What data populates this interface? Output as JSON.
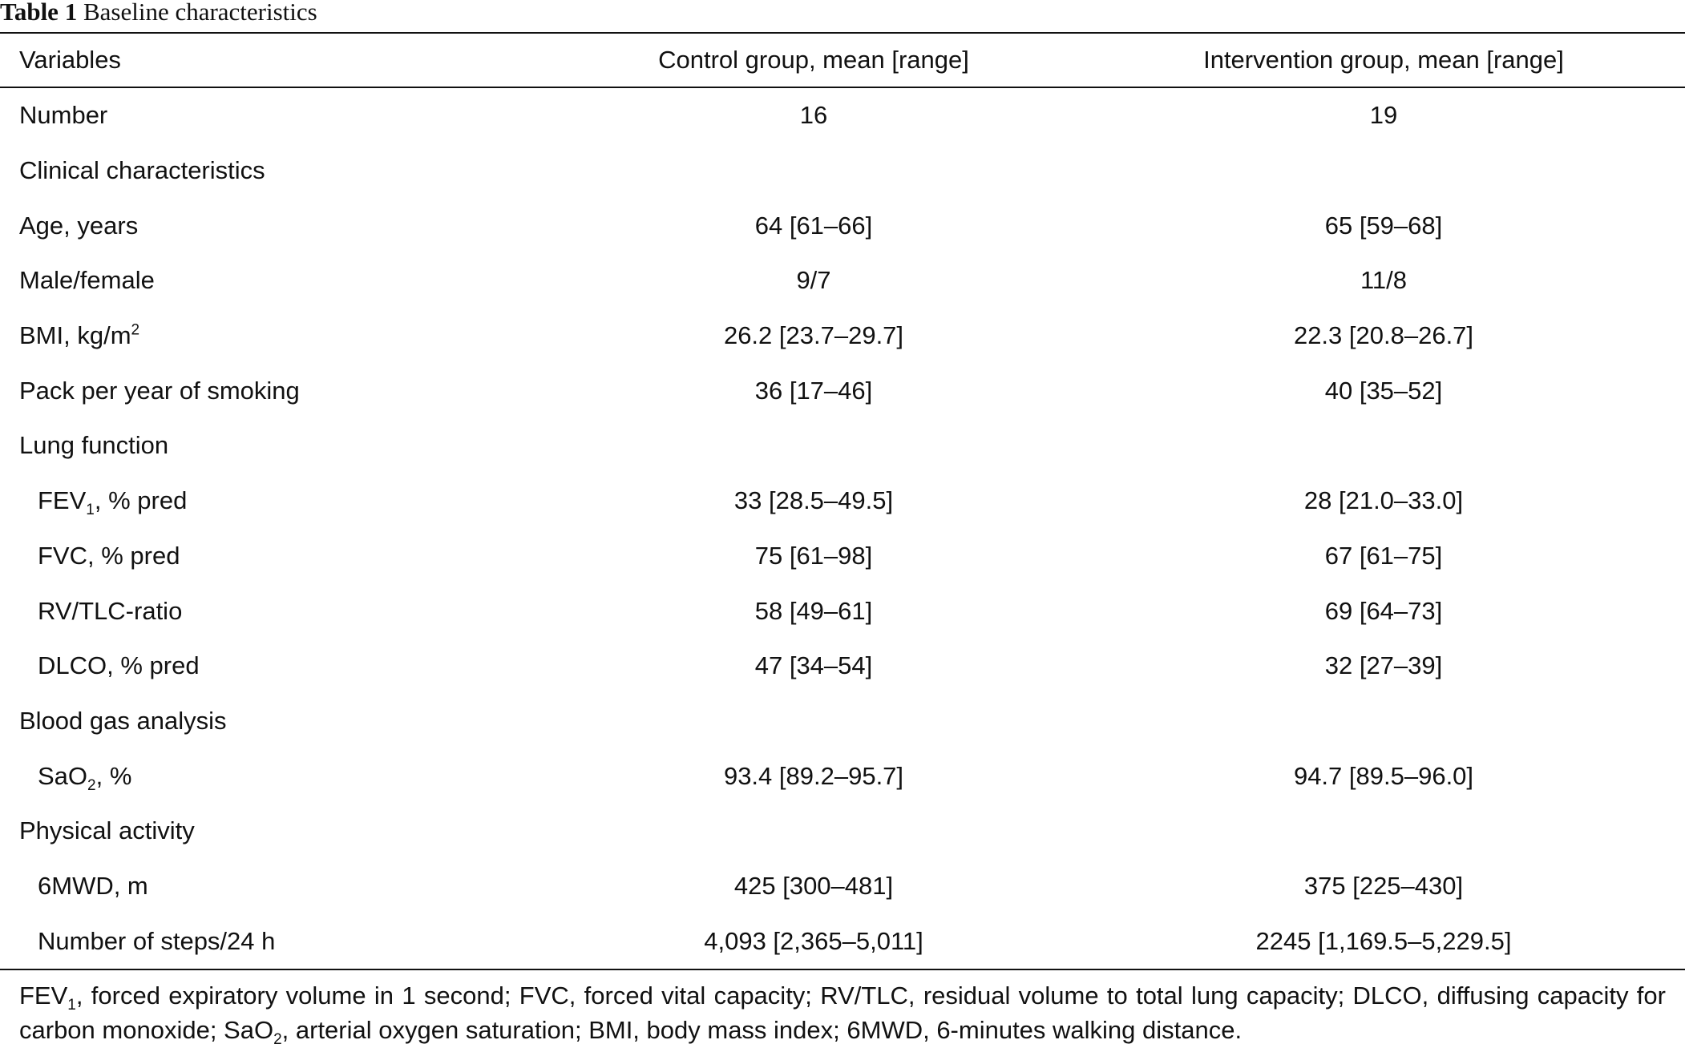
{
  "caption": {
    "label": "Table 1",
    "title": "Baseline characteristics"
  },
  "headers": [
    "Variables",
    "Control group, mean [range]",
    "Intervention group, mean [range]"
  ],
  "rows": [
    {
      "label": "Number",
      "control": "16",
      "intervention": "19"
    },
    {
      "label": "Clinical characteristics",
      "control": "",
      "intervention": ""
    },
    {
      "label": "Age, years",
      "control": "64 [61–66]",
      "intervention": "65 [59–68]"
    },
    {
      "label": "Male/female",
      "control": "9/7",
      "intervention": "11/8"
    },
    {
      "label": "BMI, kg/m",
      "label_sup": "2",
      "control": "26.2 [23.7–29.7]",
      "intervention": "22.3 [20.8–26.7]"
    },
    {
      "label": "Pack per year of smoking",
      "control": "36 [17–46]",
      "intervention": "40 [35–52]"
    },
    {
      "label": "Lung function",
      "control": "",
      "intervention": ""
    },
    {
      "label": "FEV",
      "label_sub": "1",
      "label_tail": ", % pred",
      "control": "33 [28.5–49.5]",
      "intervention": "28 [21.0–33.0]"
    },
    {
      "label": "FVC, % pred",
      "control": "75 [61–98]",
      "intervention": "67 [61–75]"
    },
    {
      "label": "RV/TLC-ratio",
      "control": "58 [49–61]",
      "intervention": "69 [64–73]"
    },
    {
      "label": "DLCO, % pred",
      "control": "47 [34–54]",
      "intervention": "32 [27–39]"
    },
    {
      "label": "Blood gas analysis",
      "control": "",
      "intervention": ""
    },
    {
      "label": "SaO",
      "label_sub": "2",
      "label_tail": ", %",
      "control": "93.4 [89.2–95.7]",
      "intervention": "94.7 [89.5–96.0]"
    },
    {
      "label": "Physical activity",
      "control": "",
      "intervention": ""
    },
    {
      "label": "6MWD, m",
      "control": "425 [300–481]",
      "intervention": "375 [225–430]"
    },
    {
      "label": "Number of steps/24 h",
      "control": "4,093 [2,365–5,011]",
      "intervention": "2245 [1,169.5–5,229.5]"
    }
  ],
  "footnote": {
    "p1": "FEV",
    "p1_sub": "1",
    "p2": ", forced expiratory volume in 1 second; FVC, forced vital capacity; RV/TLC, residual volume to total lung capacity; DLCO, diffusing capacity for carbon monoxide; SaO",
    "p2_sub": "2",
    "p3": ", arterial oxygen saturation; BMI, body mass index; 6MWD, 6-minutes walking distance."
  }
}
